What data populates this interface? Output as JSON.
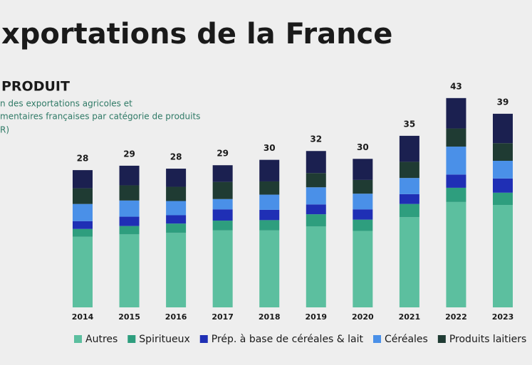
{
  "chart_data": {
    "type": "stacked_bar",
    "title": "xportations de la France",
    "subtitle": "PRODUIT",
    "description": [
      "n des exportations agricoles et",
      "mentaires françaises par catégorie de produits",
      "R)"
    ],
    "categories": [
      "2014",
      "2015",
      "2016",
      "2017",
      "2018",
      "2019",
      "2020",
      "2021",
      "2022",
      "2023"
    ],
    "totals": [
      28,
      29,
      28,
      29,
      30,
      32,
      30,
      35,
      43,
      39
    ],
    "ylim": [
      0,
      45
    ],
    "series": [
      {
        "name": "Autres",
        "color": "#5cbf9f",
        "values": [
          14.4,
          14.9,
          15.2,
          15.7,
          15.7,
          16.5,
          15.6,
          18.4,
          21.5,
          20.9
        ]
      },
      {
        "name": "Spiritueux",
        "color": "#2e9e7e",
        "values": [
          1.6,
          1.7,
          1.9,
          2.0,
          2.1,
          2.5,
          2.3,
          2.7,
          2.9,
          2.5
        ]
      },
      {
        "name": "Prép. à base de céréales & lait",
        "color": "#1f2fb5",
        "values": [
          1.6,
          1.9,
          1.7,
          2.3,
          2.1,
          2.0,
          2.1,
          2.0,
          2.7,
          2.9
        ]
      },
      {
        "name": "Céréales",
        "color": "#4a90e8",
        "values": [
          3.5,
          3.3,
          2.9,
          2.1,
          3.1,
          3.5,
          3.2,
          3.3,
          5.7,
          3.6
        ]
      },
      {
        "name": "Produits laitiers",
        "color": "#1f3b33",
        "values": [
          3.2,
          3.1,
          2.9,
          3.5,
          2.7,
          2.9,
          2.8,
          3.3,
          3.7,
          3.6
        ]
      },
      {
        "color": "#1b2050",
        "values": [
          3.7,
          4.0,
          3.7,
          3.4,
          4.4,
          4.5,
          4.3,
          5.3,
          6.2,
          6.0
        ]
      }
    ]
  }
}
